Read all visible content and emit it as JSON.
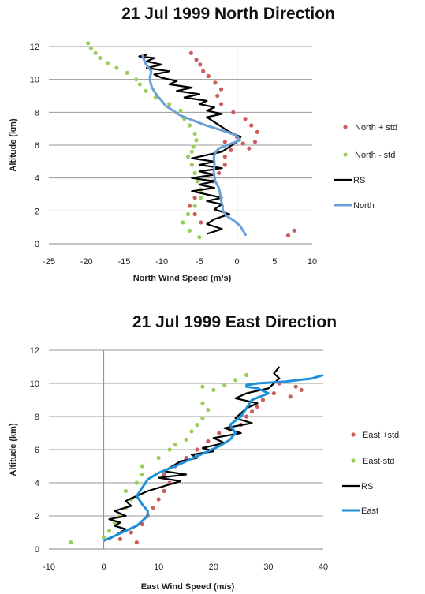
{
  "chart_data": [
    {
      "type": "line",
      "title": "21 Jul 1999 North Direction",
      "xlabel": "North Wind Speed (m/s)",
      "ylabel": "Altitude (km)",
      "xlim": [
        -25,
        10
      ],
      "ylim": [
        0,
        12
      ],
      "xticks": [
        "-25",
        "-20",
        "-15",
        "-10",
        "-5",
        "0",
        "5",
        "10"
      ],
      "yticks": [
        "0",
        "2",
        "4",
        "6",
        "8",
        "10",
        "12"
      ],
      "grid": "horizontal",
      "legend_placement": "right",
      "series": [
        {
          "name": "North + std",
          "kind": "scatter",
          "color": "#cd5c5c",
          "x": [
            6.8,
            7.6,
            -4.8,
            -5.6,
            -6.3,
            -5.6,
            -4.8,
            -3.2,
            -2.4,
            -1.6,
            -1.6,
            -0.8,
            -1.6,
            0.0,
            0.8,
            1.6,
            2.4,
            2.7,
            1.9,
            1.1,
            -0.5,
            -2.1,
            -2.6,
            -2.1,
            -2.9,
            -3.8,
            -4.5,
            -4.9,
            -5.4,
            -6.1
          ],
          "y": [
            0.5,
            0.8,
            1.3,
            1.8,
            2.3,
            2.8,
            3.3,
            3.8,
            4.3,
            4.8,
            5.3,
            5.7,
            6.2,
            6.5,
            6.1,
            5.8,
            6.2,
            6.8,
            7.2,
            7.6,
            8.0,
            8.5,
            9.0,
            9.4,
            9.8,
            10.2,
            10.5,
            10.9,
            11.2,
            11.6
          ]
        },
        {
          "name": "North - std",
          "kind": "scatter",
          "color": "#9acd5a",
          "x": [
            -5.0,
            -6.3,
            -7.2,
            -6.5,
            -5.6,
            -4.8,
            -4.8,
            -5.2,
            -5.6,
            -6.0,
            -6.5,
            -6.0,
            -5.8,
            -5.4,
            -5.6,
            -6.3,
            -7.0,
            -7.5,
            -9.0,
            -10.8,
            -12.1,
            -12.9,
            -13.4,
            -14.6,
            -16.0,
            -17.2,
            -18.2,
            -18.8,
            -19.4,
            -19.8
          ],
          "y": [
            0.4,
            0.8,
            1.3,
            1.8,
            2.3,
            2.8,
            3.3,
            3.8,
            4.3,
            4.8,
            5.3,
            5.6,
            5.9,
            6.3,
            6.7,
            7.2,
            7.6,
            8.1,
            8.5,
            8.9,
            9.3,
            9.7,
            10.0,
            10.4,
            10.7,
            11.0,
            11.3,
            11.6,
            11.9,
            12.2
          ]
        },
        {
          "name": "RS",
          "kind": "line",
          "color": "#000000",
          "x": [
            -4,
            -2,
            -4,
            -3,
            -1,
            -3,
            -2,
            -4,
            -2,
            -4,
            -6,
            -3,
            -5,
            -3,
            -6,
            -3,
            -5,
            -2,
            -5,
            -3,
            -6,
            -4,
            -2,
            -1,
            0,
            0.5,
            -1,
            -2,
            -3,
            -4,
            -2,
            -4,
            -3,
            -5,
            -4,
            -7,
            -5,
            -8,
            -6,
            -9,
            -8,
            -10,
            -11,
            -9,
            -12,
            -10,
            -12,
            -11,
            -13,
            -12
          ],
          "y": [
            0.6,
            0.9,
            1.2,
            1.5,
            1.8,
            2.1,
            2.4,
            2.6,
            2.8,
            3.0,
            3.2,
            3.4,
            3.6,
            3.8,
            4.0,
            4.2,
            4.4,
            4.6,
            4.8,
            5.0,
            5.2,
            5.4,
            5.6,
            5.9,
            6.2,
            6.5,
            6.8,
            7.1,
            7.4,
            7.7,
            7.9,
            8.1,
            8.3,
            8.5,
            8.7,
            8.9,
            9.1,
            9.3,
            9.5,
            9.7,
            9.9,
            10.1,
            10.3,
            10.5,
            10.7,
            10.9,
            11.1,
            11.3,
            11.4,
            11.5
          ]
        },
        {
          "name": "North",
          "kind": "line",
          "color": "#6a9fd8",
          "x": [
            1.2,
            0.8,
            0.4,
            -0.4,
            -1.4,
            -1.9,
            -1.9,
            -2.1,
            -2.2,
            -2.3,
            -2.5,
            -2.9,
            -3.0,
            -3.1,
            -3.0,
            -3.0,
            -3.1,
            -3.0,
            -2.8,
            -2.4,
            -1.3,
            0.4,
            -0.1,
            -2.0,
            -4.1,
            -5.8,
            -7.5,
            -8.5,
            -9.5,
            -10.0,
            -10.6,
            -11.3,
            -11.6,
            -11.4,
            -12.2,
            -12.6
          ],
          "y": [
            0.5,
            0.8,
            1.1,
            1.4,
            1.7,
            2.0,
            2.3,
            2.6,
            2.9,
            3.2,
            3.5,
            3.8,
            4.1,
            4.4,
            4.7,
            5.0,
            5.2,
            5.4,
            5.6,
            5.8,
            6.0,
            6.3,
            6.6,
            6.9,
            7.2,
            7.5,
            7.8,
            8.1,
            8.4,
            8.7,
            9.0,
            9.5,
            10.0,
            10.5,
            11.0,
            11.5
          ]
        }
      ]
    },
    {
      "type": "line",
      "title": "21 Jul 1999 East Direction",
      "xlabel": "East Wind Speed (m/s)",
      "ylabel": "Altitude (km)",
      "xlim": [
        -10,
        40
      ],
      "ylim": [
        0,
        12
      ],
      "xticks": [
        "-10",
        "0",
        "10",
        "20",
        "30",
        "40"
      ],
      "yticks": [
        "0",
        "2",
        "4",
        "6",
        "8",
        "10",
        "12"
      ],
      "grid": "horizontal",
      "legend_placement": "right",
      "series": [
        {
          "name": "East +std",
          "kind": "scatter",
          "color": "#cd5c5c",
          "x": [
            6,
            3,
            5,
            7,
            8,
            9,
            10,
            11,
            12,
            11,
            13,
            15,
            17,
            19,
            21,
            23,
            25,
            26,
            27,
            28,
            29,
            31,
            32,
            34,
            35,
            36
          ],
          "y": [
            0.4,
            0.6,
            1.0,
            1.5,
            2.0,
            2.5,
            3.0,
            3.5,
            4.0,
            4.5,
            5.0,
            5.5,
            6.0,
            6.5,
            7.0,
            7.2,
            7.5,
            8.0,
            8.3,
            8.6,
            9.0,
            9.4,
            10.0,
            9.2,
            9.8,
            9.6
          ]
        },
        {
          "name": "East-std",
          "kind": "scatter",
          "color": "#9acd5a",
          "x": [
            -6,
            0,
            1,
            2,
            3,
            4,
            5,
            4,
            6,
            7,
            7,
            10,
            12,
            13,
            15,
            16,
            17,
            18,
            19,
            18,
            18,
            20,
            22,
            24,
            26
          ],
          "y": [
            0.4,
            0.7,
            1.1,
            1.6,
            2.0,
            2.5,
            3.0,
            3.5,
            4.0,
            4.5,
            5.0,
            5.5,
            6.0,
            6.3,
            6.6,
            7.1,
            7.5,
            7.9,
            8.4,
            8.8,
            9.8,
            9.6,
            9.9,
            10.2,
            10.5
          ]
        },
        {
          "name": "RS",
          "kind": "line",
          "color": "#000000",
          "x": [
            1,
            2,
            3,
            4,
            2,
            3,
            1,
            4,
            2,
            5,
            4,
            6,
            8,
            10,
            12,
            14,
            10,
            15,
            11,
            12,
            13,
            14,
            17,
            16,
            20,
            18,
            22,
            20,
            25,
            22,
            27,
            24,
            25,
            26,
            28,
            24,
            26,
            30,
            31,
            32,
            31,
            32
          ],
          "y": [
            0.6,
            0.8,
            1.0,
            1.2,
            1.4,
            1.6,
            1.8,
            2.0,
            2.3,
            2.6,
            2.9,
            3.2,
            3.5,
            3.7,
            3.9,
            4.1,
            4.3,
            4.5,
            4.7,
            4.9,
            5.1,
            5.3,
            5.5,
            5.7,
            5.9,
            6.1,
            6.4,
            6.7,
            7.0,
            7.3,
            7.6,
            7.9,
            8.2,
            8.5,
            8.8,
            9.1,
            9.4,
            9.7,
            10.0,
            10.3,
            10.6,
            11.0
          ]
        },
        {
          "name": "East",
          "kind": "line",
          "color": "#1e90d8",
          "x": [
            0,
            2,
            4,
            6,
            7,
            8,
            8,
            7,
            6,
            7,
            8,
            10,
            13,
            15,
            17,
            19,
            21,
            23,
            24,
            23,
            25,
            26,
            27,
            30,
            28,
            26,
            26,
            28,
            33,
            38,
            40
          ],
          "y": [
            0.5,
            0.8,
            1.1,
            1.4,
            1.7,
            2.0,
            2.3,
            2.7,
            3.2,
            3.7,
            4.2,
            4.6,
            5.0,
            5.3,
            5.6,
            5.9,
            6.2,
            6.6,
            7.0,
            7.5,
            8.0,
            8.5,
            9.0,
            9.4,
            9.7,
            9.8,
            9.9,
            10.0,
            10.1,
            10.3,
            10.5
          ]
        }
      ]
    }
  ]
}
